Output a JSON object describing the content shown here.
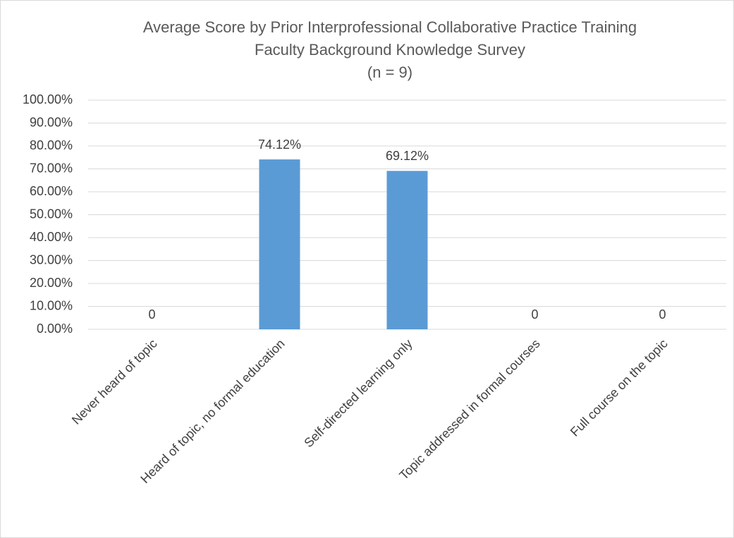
{
  "chart_data": {
    "type": "bar",
    "title": [
      "Average Score by Prior Interprofessional Collaborative Practice Training",
      "Faculty Background Knowledge Survey",
      "(n = 9)"
    ],
    "categories": [
      "Never heard of topic",
      "Heard of topic, no formal education",
      "Self-directed learning only",
      "Topic addressed in formal courses",
      "Full course on the topic"
    ],
    "values": [
      0,
      74.12,
      69.12,
      0,
      0
    ],
    "value_labels": [
      "0",
      "74.12%",
      "69.12%",
      "0",
      "0"
    ],
    "color": "#5b9bd5",
    "ylim": [
      0,
      100
    ],
    "yticks": [
      {
        "value": 0,
        "label": "0.00%"
      },
      {
        "value": 10,
        "label": "10.00%"
      },
      {
        "value": 20,
        "label": "20.00%"
      },
      {
        "value": 30,
        "label": "30.00%"
      },
      {
        "value": 40,
        "label": "40.00%"
      },
      {
        "value": 50,
        "label": "50.00%"
      },
      {
        "value": 60,
        "label": "60.00%"
      },
      {
        "value": 70,
        "label": "70.00%"
      },
      {
        "value": 80,
        "label": "80.00%"
      },
      {
        "value": 90,
        "label": "90.00%"
      },
      {
        "value": 100,
        "label": "100.00%"
      }
    ],
    "grid": true
  }
}
